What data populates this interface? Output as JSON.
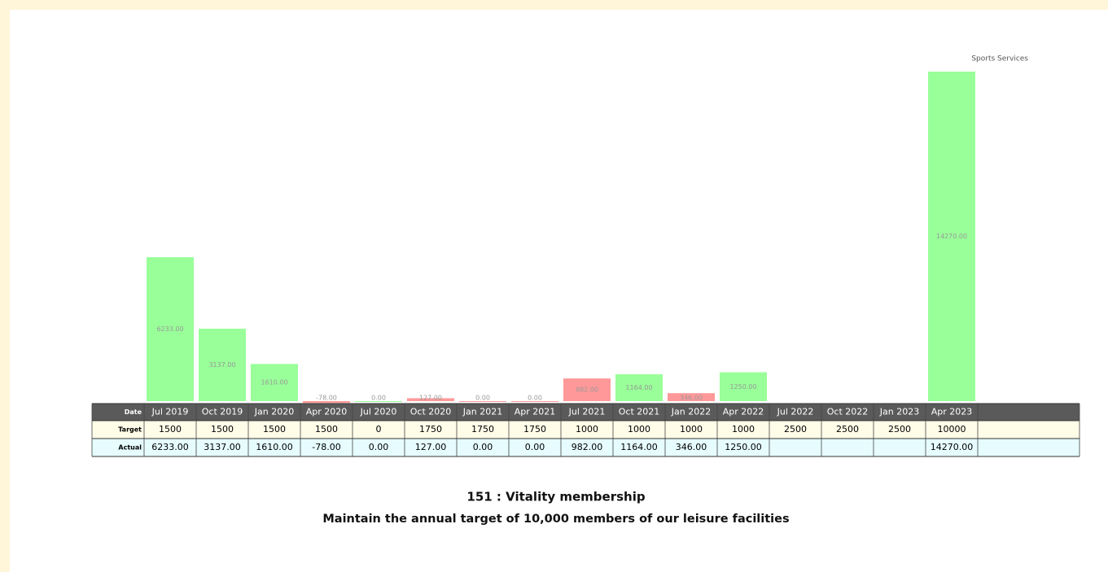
{
  "chart_data": {
    "type": "bar",
    "title": "151 : Vitality membership",
    "subtitle": "Maintain the annual target of 10,000 members of our leisure facilities",
    "annotation": "Sports Services",
    "row_labels": {
      "date": "Date",
      "target": "Target",
      "actual": "Actual"
    },
    "categories": [
      "Jul 2019",
      "Oct 2019",
      "Jan 2020",
      "Apr 2020",
      "Jul 2020",
      "Oct 2020",
      "Jan 2021",
      "Apr 2021",
      "Jul 2021",
      "Oct 2021",
      "Jan 2022",
      "Apr 2022",
      "Jul 2022",
      "Oct 2022",
      "Jan 2023",
      "Apr 2023"
    ],
    "target": [
      1500,
      1500,
      1500,
      1500,
      0,
      1750,
      1750,
      1750,
      1000,
      1000,
      1000,
      1000,
      2500,
      2500,
      2500,
      10000
    ],
    "values": [
      6233,
      3137,
      1610,
      -78,
      0,
      127,
      0,
      0,
      982,
      1164,
      346,
      1250,
      null,
      null,
      null,
      14270
    ],
    "value_labels": [
      "6233.00",
      "3137.00",
      "1610.00",
      "-78.00",
      "0.00",
      "127.00",
      "0.00",
      "0.00",
      "982.00",
      "1164.00",
      "346.00",
      "1250.00",
      null,
      null,
      null,
      "14270.00"
    ],
    "met_color": "#99ff99",
    "missed_color": "#ff9999",
    "ylim": [
      0,
      14270
    ]
  }
}
